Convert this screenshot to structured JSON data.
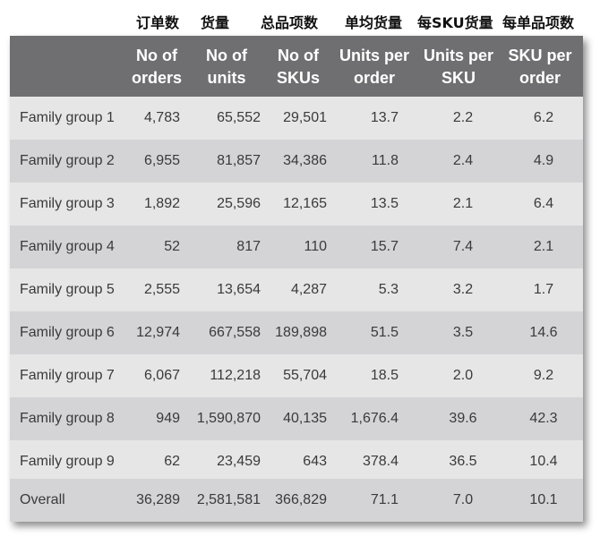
{
  "chinese_headers": [
    "订单数",
    "货量",
    "总品项数",
    "单均货量",
    "每SKU货量",
    "每单品项数"
  ],
  "english_headers": [
    [
      "No of",
      "orders"
    ],
    [
      "No of",
      "units"
    ],
    [
      "No of",
      "SKUs"
    ],
    [
      "Units per",
      "order"
    ],
    [
      "Units per",
      "SKU"
    ],
    [
      "SKU per",
      "order"
    ]
  ],
  "rows": [
    {
      "label": "Family group 1",
      "orders": "4,783",
      "units": "65,552",
      "skus": "29,501",
      "units_per_order": "13.7",
      "units_per_sku": "2.2",
      "sku_per_order": "6.2"
    },
    {
      "label": "Family group 2",
      "orders": "6,955",
      "units": "81,857",
      "skus": "34,386",
      "units_per_order": "11.8",
      "units_per_sku": "2.4",
      "sku_per_order": "4.9"
    },
    {
      "label": "Family group 3",
      "orders": "1,892",
      "units": "25,596",
      "skus": "12,165",
      "units_per_order": "13.5",
      "units_per_sku": "2.1",
      "sku_per_order": "6.4"
    },
    {
      "label": "Family group 4",
      "orders": "52",
      "units": "817",
      "skus": "110",
      "units_per_order": "15.7",
      "units_per_sku": "7.4",
      "sku_per_order": "2.1"
    },
    {
      "label": "Family group 5",
      "orders": "2,555",
      "units": "13,654",
      "skus": "4,287",
      "units_per_order": "5.3",
      "units_per_sku": "3.2",
      "sku_per_order": "1.7"
    },
    {
      "label": "Family group 6",
      "orders": "12,974",
      "units": "667,558",
      "skus": "189,898",
      "units_per_order": "51.5",
      "units_per_sku": "3.5",
      "sku_per_order": "14.6"
    },
    {
      "label": "Family group 7",
      "orders": "6,067",
      "units": "112,218",
      "skus": "55,704",
      "units_per_order": "18.5",
      "units_per_sku": "2.0",
      "sku_per_order": "9.2"
    },
    {
      "label": "Family group 8",
      "orders": "949",
      "units": "1,590,870",
      "skus": "40,135",
      "units_per_order": "1,676.4",
      "units_per_sku": "39.6",
      "sku_per_order": "42.3"
    },
    {
      "label": "Family group 9",
      "orders": "62",
      "units": "23,459",
      "skus": "643",
      "units_per_order": "378.4",
      "units_per_sku": "36.5",
      "sku_per_order": "10.4"
    },
    {
      "label": "Overall",
      "orders": "36,289",
      "units": "2,581,581",
      "skus": "366,829",
      "units_per_order": "71.1",
      "units_per_sku": "7.0",
      "sku_per_order": "10.1"
    }
  ]
}
